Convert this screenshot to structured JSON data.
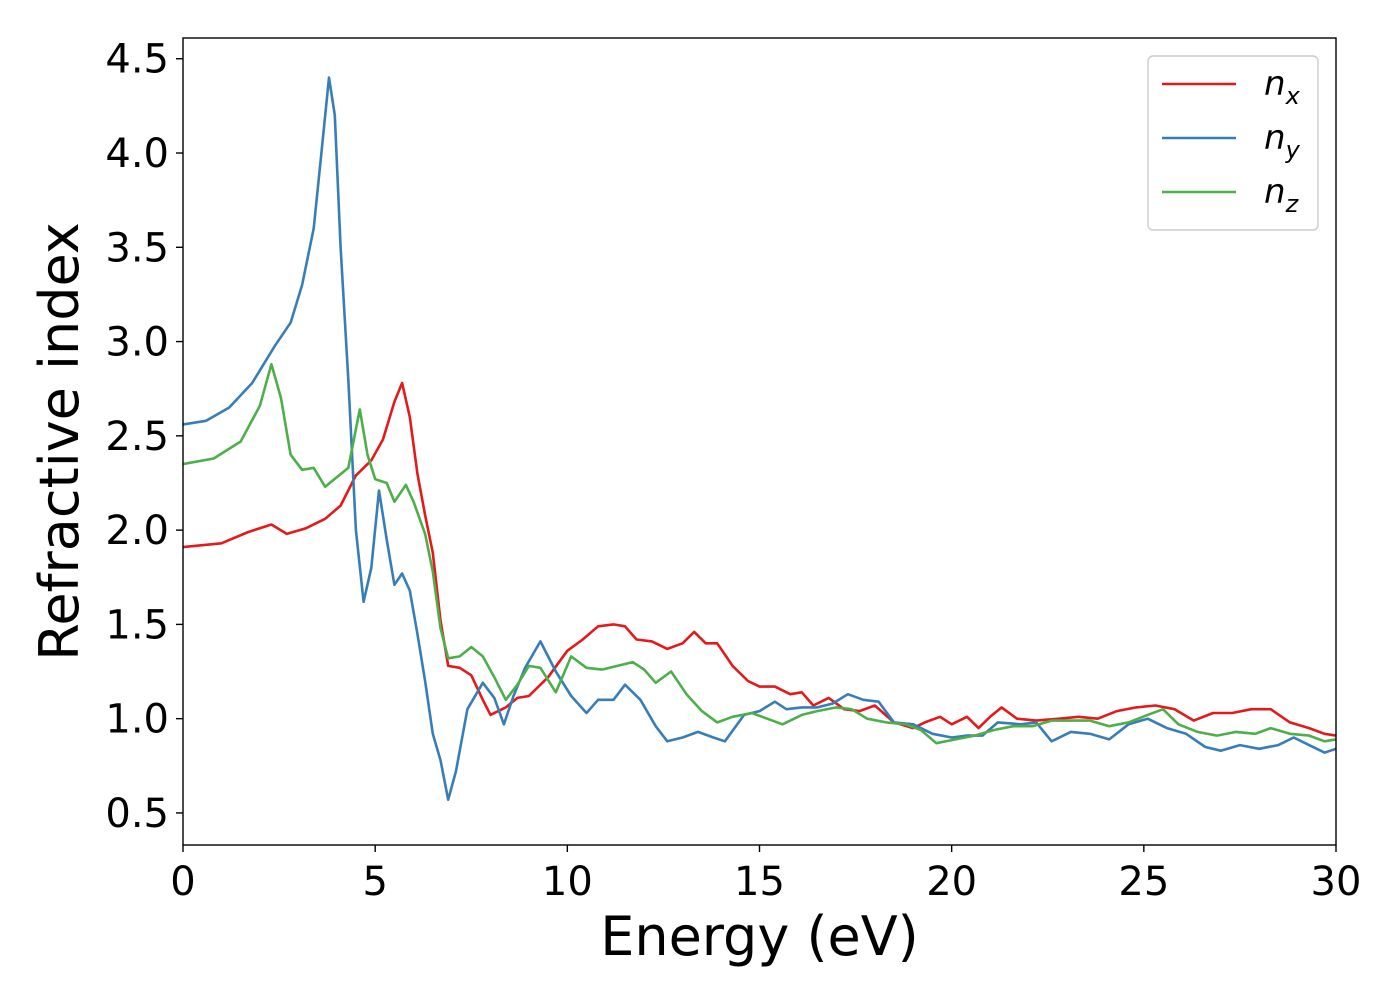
{
  "chart_data": {
    "type": "line",
    "xlabel": "Energy (eV)",
    "ylabel": "Refractive index",
    "xlim": [
      0,
      30
    ],
    "ylim": [
      0.33,
      4.61
    ],
    "xticks": [
      0,
      5,
      10,
      15,
      20,
      25,
      30
    ],
    "xtick_labels": [
      "0",
      "5",
      "10",
      "15",
      "20",
      "25",
      "30"
    ],
    "yticks": [
      0.5,
      1.0,
      1.5,
      2.0,
      2.5,
      3.0,
      3.5,
      4.0,
      4.5
    ],
    "ytick_labels": [
      "0.5",
      "1.0",
      "1.5",
      "2.0",
      "2.5",
      "3.0",
      "3.5",
      "4.0",
      "4.5"
    ],
    "grid": false,
    "legend_position": "top-right",
    "series": [
      {
        "name": "n",
        "subscript": "x",
        "color": "#e31a1c",
        "points": [
          [
            0,
            1.91
          ],
          [
            1,
            1.93
          ],
          [
            1.7,
            1.99
          ],
          [
            2.3,
            2.03
          ],
          [
            2.7,
            1.98
          ],
          [
            3.2,
            2.01
          ],
          [
            3.7,
            2.06
          ],
          [
            4.1,
            2.13
          ],
          [
            4.5,
            2.29
          ],
          [
            4.9,
            2.37
          ],
          [
            5.2,
            2.48
          ],
          [
            5.5,
            2.68
          ],
          [
            5.7,
            2.78
          ],
          [
            5.9,
            2.6
          ],
          [
            6.1,
            2.3
          ],
          [
            6.3,
            2.08
          ],
          [
            6.5,
            1.88
          ],
          [
            6.7,
            1.52
          ],
          [
            6.9,
            1.28
          ],
          [
            7.2,
            1.27
          ],
          [
            7.5,
            1.23
          ],
          [
            7.8,
            1.1
          ],
          [
            8.0,
            1.02
          ],
          [
            8.2,
            1.04
          ],
          [
            8.4,
            1.06
          ],
          [
            8.7,
            1.11
          ],
          [
            9.0,
            1.12
          ],
          [
            9.5,
            1.22
          ],
          [
            10.0,
            1.36
          ],
          [
            10.4,
            1.42
          ],
          [
            10.8,
            1.49
          ],
          [
            11.2,
            1.5
          ],
          [
            11.5,
            1.49
          ],
          [
            11.8,
            1.42
          ],
          [
            12.2,
            1.41
          ],
          [
            12.6,
            1.37
          ],
          [
            13.0,
            1.4
          ],
          [
            13.3,
            1.46
          ],
          [
            13.6,
            1.4
          ],
          [
            13.9,
            1.4
          ],
          [
            14.3,
            1.28
          ],
          [
            14.7,
            1.2
          ],
          [
            15.0,
            1.17
          ],
          [
            15.4,
            1.17
          ],
          [
            15.8,
            1.13
          ],
          [
            16.1,
            1.14
          ],
          [
            16.4,
            1.07
          ],
          [
            16.8,
            1.11
          ],
          [
            17.2,
            1.05
          ],
          [
            17.6,
            1.04
          ],
          [
            18.0,
            1.07
          ],
          [
            18.5,
            0.98
          ],
          [
            19.0,
            0.95
          ],
          [
            19.3,
            0.98
          ],
          [
            19.7,
            1.01
          ],
          [
            20.0,
            0.97
          ],
          [
            20.4,
            1.01
          ],
          [
            20.7,
            0.95
          ],
          [
            21.0,
            1.01
          ],
          [
            21.3,
            1.06
          ],
          [
            21.7,
            1.0
          ],
          [
            22.2,
            0.99
          ],
          [
            22.8,
            1.0
          ],
          [
            23.3,
            1.01
          ],
          [
            23.8,
            1.0
          ],
          [
            24.3,
            1.04
          ],
          [
            24.8,
            1.06
          ],
          [
            25.3,
            1.07
          ],
          [
            25.8,
            1.05
          ],
          [
            26.3,
            0.99
          ],
          [
            26.8,
            1.03
          ],
          [
            27.3,
            1.03
          ],
          [
            27.8,
            1.05
          ],
          [
            28.3,
            1.05
          ],
          [
            28.8,
            0.98
          ],
          [
            29.3,
            0.95
          ],
          [
            29.7,
            0.92
          ],
          [
            30,
            0.91
          ]
        ]
      },
      {
        "name": "n",
        "subscript": "y",
        "color": "#377eb8",
        "points": [
          [
            0,
            2.56
          ],
          [
            0.6,
            2.58
          ],
          [
            1.2,
            2.65
          ],
          [
            1.8,
            2.78
          ],
          [
            2.4,
            2.98
          ],
          [
            2.8,
            3.1
          ],
          [
            3.1,
            3.3
          ],
          [
            3.4,
            3.6
          ],
          [
            3.6,
            4.0
          ],
          [
            3.8,
            4.4
          ],
          [
            3.95,
            4.2
          ],
          [
            4.1,
            3.5
          ],
          [
            4.3,
            2.8
          ],
          [
            4.5,
            2.0
          ],
          [
            4.7,
            1.62
          ],
          [
            4.9,
            1.8
          ],
          [
            5.1,
            2.21
          ],
          [
            5.3,
            1.95
          ],
          [
            5.5,
            1.71
          ],
          [
            5.7,
            1.77
          ],
          [
            5.9,
            1.68
          ],
          [
            6.1,
            1.45
          ],
          [
            6.3,
            1.2
          ],
          [
            6.5,
            0.92
          ],
          [
            6.7,
            0.78
          ],
          [
            6.9,
            0.57
          ],
          [
            7.1,
            0.72
          ],
          [
            7.4,
            1.05
          ],
          [
            7.8,
            1.19
          ],
          [
            8.1,
            1.11
          ],
          [
            8.35,
            0.97
          ],
          [
            8.6,
            1.12
          ],
          [
            8.9,
            1.27
          ],
          [
            9.3,
            1.41
          ],
          [
            9.7,
            1.25
          ],
          [
            10.1,
            1.12
          ],
          [
            10.5,
            1.03
          ],
          [
            10.8,
            1.1
          ],
          [
            11.2,
            1.1
          ],
          [
            11.5,
            1.18
          ],
          [
            11.9,
            1.1
          ],
          [
            12.3,
            0.96
          ],
          [
            12.6,
            0.88
          ],
          [
            13.0,
            0.9
          ],
          [
            13.4,
            0.93
          ],
          [
            13.8,
            0.9
          ],
          [
            14.1,
            0.88
          ],
          [
            14.6,
            1.02
          ],
          [
            15.0,
            1.04
          ],
          [
            15.4,
            1.09
          ],
          [
            15.7,
            1.05
          ],
          [
            16.1,
            1.06
          ],
          [
            16.5,
            1.06
          ],
          [
            16.9,
            1.08
          ],
          [
            17.3,
            1.13
          ],
          [
            17.7,
            1.1
          ],
          [
            18.1,
            1.09
          ],
          [
            18.5,
            0.98
          ],
          [
            19.0,
            0.97
          ],
          [
            19.5,
            0.92
          ],
          [
            20.0,
            0.9
          ],
          [
            20.4,
            0.91
          ],
          [
            20.8,
            0.91
          ],
          [
            21.2,
            0.98
          ],
          [
            21.8,
            0.97
          ],
          [
            22.2,
            0.98
          ],
          [
            22.6,
            0.88
          ],
          [
            23.1,
            0.93
          ],
          [
            23.6,
            0.92
          ],
          [
            24.1,
            0.89
          ],
          [
            24.6,
            0.97
          ],
          [
            25.1,
            1.0
          ],
          [
            25.6,
            0.95
          ],
          [
            26.1,
            0.92
          ],
          [
            26.6,
            0.85
          ],
          [
            27.0,
            0.83
          ],
          [
            27.5,
            0.86
          ],
          [
            28.0,
            0.84
          ],
          [
            28.5,
            0.86
          ],
          [
            28.9,
            0.9
          ],
          [
            29.3,
            0.86
          ],
          [
            29.7,
            0.82
          ],
          [
            30,
            0.84
          ]
        ]
      },
      {
        "name": "n",
        "subscript": "z",
        "color": "#4daf4a",
        "points": [
          [
            0,
            2.35
          ],
          [
            0.8,
            2.38
          ],
          [
            1.5,
            2.47
          ],
          [
            2.0,
            2.66
          ],
          [
            2.3,
            2.88
          ],
          [
            2.55,
            2.7
          ],
          [
            2.8,
            2.4
          ],
          [
            3.1,
            2.32
          ],
          [
            3.4,
            2.33
          ],
          [
            3.7,
            2.23
          ],
          [
            4.0,
            2.28
          ],
          [
            4.3,
            2.33
          ],
          [
            4.6,
            2.64
          ],
          [
            4.8,
            2.4
          ],
          [
            5.0,
            2.27
          ],
          [
            5.3,
            2.25
          ],
          [
            5.5,
            2.15
          ],
          [
            5.8,
            2.24
          ],
          [
            6.0,
            2.15
          ],
          [
            6.3,
            1.98
          ],
          [
            6.5,
            1.78
          ],
          [
            6.7,
            1.48
          ],
          [
            6.9,
            1.32
          ],
          [
            7.2,
            1.33
          ],
          [
            7.5,
            1.38
          ],
          [
            7.8,
            1.33
          ],
          [
            8.1,
            1.22
          ],
          [
            8.4,
            1.1
          ],
          [
            8.7,
            1.18
          ],
          [
            9.0,
            1.28
          ],
          [
            9.3,
            1.27
          ],
          [
            9.7,
            1.14
          ],
          [
            10.1,
            1.33
          ],
          [
            10.5,
            1.27
          ],
          [
            10.9,
            1.26
          ],
          [
            11.3,
            1.28
          ],
          [
            11.7,
            1.3
          ],
          [
            12.0,
            1.26
          ],
          [
            12.3,
            1.19
          ],
          [
            12.7,
            1.25
          ],
          [
            13.1,
            1.13
          ],
          [
            13.5,
            1.04
          ],
          [
            13.9,
            0.98
          ],
          [
            14.3,
            1.01
          ],
          [
            14.8,
            1.03
          ],
          [
            15.2,
            1.0
          ],
          [
            15.6,
            0.97
          ],
          [
            16.1,
            1.02
          ],
          [
            16.5,
            1.04
          ],
          [
            17.0,
            1.06
          ],
          [
            17.4,
            1.05
          ],
          [
            17.8,
            1.0
          ],
          [
            18.3,
            0.98
          ],
          [
            18.8,
            0.97
          ],
          [
            19.2,
            0.94
          ],
          [
            19.6,
            0.87
          ],
          [
            20.1,
            0.89
          ],
          [
            20.6,
            0.91
          ],
          [
            21.1,
            0.94
          ],
          [
            21.6,
            0.96
          ],
          [
            22.1,
            0.96
          ],
          [
            22.6,
            0.99
          ],
          [
            23.1,
            0.99
          ],
          [
            23.6,
            0.99
          ],
          [
            24.1,
            0.96
          ],
          [
            24.6,
            0.98
          ],
          [
            25.1,
            1.02
          ],
          [
            25.5,
            1.05
          ],
          [
            25.9,
            0.97
          ],
          [
            26.4,
            0.93
          ],
          [
            26.9,
            0.91
          ],
          [
            27.4,
            0.93
          ],
          [
            27.9,
            0.92
          ],
          [
            28.3,
            0.95
          ],
          [
            28.8,
            0.92
          ],
          [
            29.3,
            0.91
          ],
          [
            29.7,
            0.88
          ],
          [
            30,
            0.89
          ]
        ]
      }
    ]
  }
}
